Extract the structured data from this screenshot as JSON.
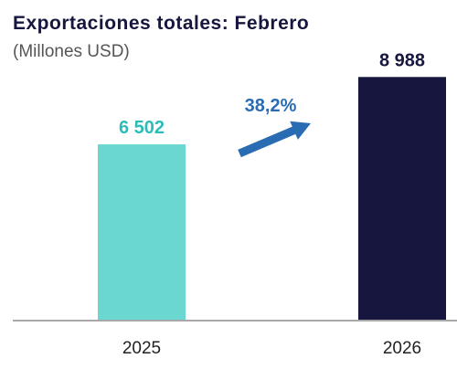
{
  "title": "Exportaciones totales: Febrero",
  "subtitle": "(Millones USD)",
  "growth_label": "38,2%",
  "colors": {
    "bar_2025": "#6ad8d1",
    "bar_2026": "#16163f",
    "label_2025": "#2bbdb7",
    "label_2026": "#16163f",
    "arrow": "#2a6cb3",
    "growth_text": "#2a6cb3",
    "axis": "#a8a8a8",
    "tick_text": "#222222"
  },
  "chart_data": {
    "type": "bar",
    "title": "Exportaciones totales: Febrero",
    "subtitle": "(Millones USD)",
    "categories": [
      "2025",
      "2026"
    ],
    "values": [
      6502,
      8988
    ],
    "value_labels": [
      "6 502",
      "8 988"
    ],
    "ylim": [
      0,
      9200
    ],
    "grid": false,
    "legend": "none",
    "annotations": [
      {
        "text": "38,2%",
        "type": "growth-arrow",
        "from": "2025",
        "to": "2026"
      }
    ]
  }
}
